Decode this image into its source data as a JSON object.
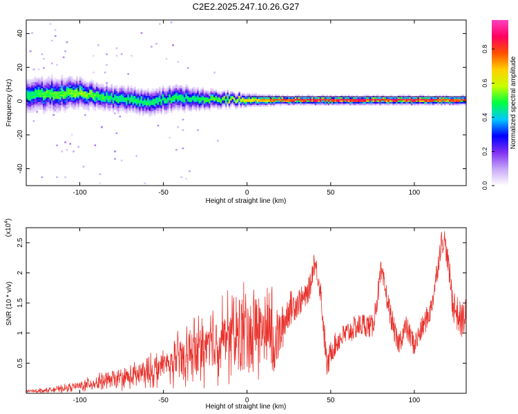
{
  "title": "C2E2.2025.247.10.26.G27",
  "chart_data": [
    {
      "type": "heatmap",
      "panel": "top",
      "xlabel": "Height of straight line (km)",
      "ylabel": "Frequency (Hz)",
      "xlim": [
        -132,
        131
      ],
      "ylim": [
        -50,
        48
      ],
      "x_ticks": [
        -100,
        -50,
        0,
        50,
        100
      ],
      "y_ticks": [
        -40,
        -20,
        0,
        20,
        40
      ],
      "colorbar": {
        "label": "Normalized spectral amplitude",
        "range": [
          0.0,
          0.97
        ],
        "ticks": [
          "0.0",
          "0.2",
          "0.4",
          "0.6",
          "0.8"
        ],
        "colors": [
          "#ffffff",
          "#c8a8f8",
          "#8030f0",
          "#0000ff",
          "#00c8ff",
          "#00ff40",
          "#c8ff00",
          "#ffd000",
          "#ff5000",
          "#ff0060",
          "#ff40c0"
        ]
      },
      "ridge": {
        "x": [
          -130,
          -120,
          -110,
          -100,
          -90,
          -80,
          -70,
          -60,
          -50,
          -40,
          -30,
          -20,
          -10,
          0,
          10,
          20,
          40,
          60,
          80,
          100,
          120,
          131
        ],
        "center_hz": [
          3.5,
          4.5,
          5.0,
          5.5,
          3.5,
          2.0,
          1.0,
          0.0,
          1.5,
          2.5,
          2.0,
          1.5,
          1.5,
          1.0,
          1.0,
          1.0,
          1.0,
          1.0,
          1.0,
          1.0,
          1.0,
          1.0
        ],
        "halfwidth_hz": [
          9,
          9,
          9,
          8,
          7,
          7,
          7,
          7,
          7,
          7,
          6,
          5,
          4,
          3.5,
          3,
          2.5,
          2.5,
          2.5,
          2.5,
          2.5,
          2.5,
          2.5
        ],
        "peak_amplitude": [
          0.5,
          0.55,
          0.55,
          0.6,
          0.55,
          0.5,
          0.5,
          0.5,
          0.5,
          0.5,
          0.5,
          0.55,
          0.6,
          0.7,
          0.75,
          0.85,
          0.9,
          0.9,
          0.9,
          0.9,
          0.85,
          0.85
        ]
      }
    },
    {
      "type": "line",
      "panel": "bottom",
      "xlabel": "Height of straight line (km)",
      "ylabel": "SNR (10 * v/v)",
      "y_multiplier": "(x10^4)",
      "xlim": [
        -132,
        131
      ],
      "ylim": [
        0,
        2.75
      ],
      "x_ticks": [
        -100,
        -50,
        0,
        50,
        100
      ],
      "y_ticks": [
        0.5,
        1.0,
        1.5,
        2.0,
        2.5
      ],
      "line_color": "#e8302a",
      "envelope": {
        "x": [
          -132,
          -120,
          -110,
          -100,
          -90,
          -80,
          -70,
          -60,
          -50,
          -40,
          -30,
          -20,
          -10,
          -5,
          0,
          5,
          10,
          15,
          20,
          25,
          30,
          35,
          38,
          40,
          42,
          44,
          46,
          48,
          50,
          55,
          60,
          65,
          70,
          75,
          78,
          80,
          82,
          85,
          90,
          95,
          100,
          105,
          110,
          114,
          116,
          118,
          120,
          123,
          126,
          128,
          131
        ],
        "base": [
          0.02,
          0.03,
          0.05,
          0.08,
          0.12,
          0.15,
          0.18,
          0.22,
          0.28,
          0.35,
          0.42,
          0.48,
          0.5,
          0.5,
          0.55,
          0.55,
          0.6,
          0.8,
          1.0,
          1.4,
          1.5,
          1.6,
          1.8,
          2.2,
          2.0,
          1.7,
          1.0,
          0.4,
          0.7,
          0.9,
          1.0,
          1.1,
          1.15,
          1.1,
          1.6,
          2.0,
          1.8,
          1.4,
          0.8,
          1.1,
          0.8,
          1.1,
          1.4,
          2.1,
          2.5,
          2.55,
          2.2,
          1.5,
          1.3,
          1.2,
          1.3
        ],
        "amp": [
          0.03,
          0.04,
          0.06,
          0.08,
          0.12,
          0.15,
          0.18,
          0.25,
          0.35,
          0.45,
          0.6,
          0.75,
          0.9,
          1.0,
          1.0,
          0.9,
          0.8,
          0.6,
          0.4,
          0.3,
          0.25,
          0.2,
          0.2,
          0.2,
          0.2,
          0.2,
          0.25,
          0.2,
          0.2,
          0.2,
          0.2,
          0.2,
          0.2,
          0.2,
          0.2,
          0.2,
          0.2,
          0.2,
          0.2,
          0.2,
          0.2,
          0.2,
          0.2,
          0.2,
          0.2,
          0.2,
          0.2,
          0.3,
          0.3,
          0.3,
          0.3
        ]
      }
    }
  ]
}
